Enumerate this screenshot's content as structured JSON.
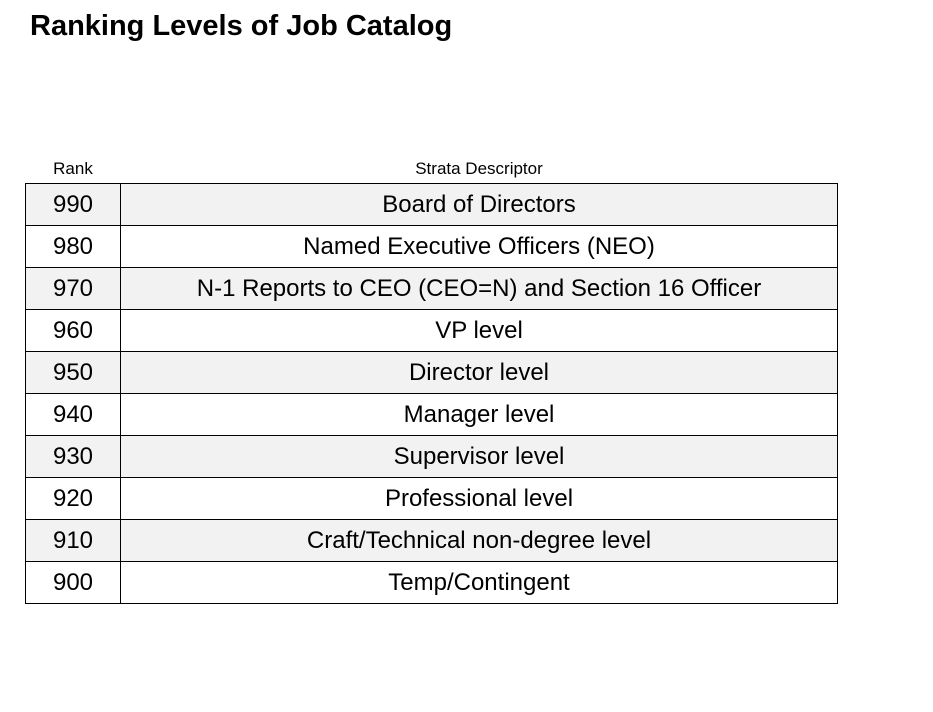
{
  "page": {
    "title": "Ranking Levels of Job Catalog"
  },
  "table": {
    "headers": {
      "rank": "Rank",
      "descriptor": "Strata Descriptor"
    },
    "rows": [
      {
        "rank": "990",
        "descriptor": "Board of Directors"
      },
      {
        "rank": "980",
        "descriptor": "Named Executive Officers (NEO)"
      },
      {
        "rank": "970",
        "descriptor": "N-1 Reports to CEO (CEO=N) and Section 16 Officer"
      },
      {
        "rank": "960",
        "descriptor": "VP level"
      },
      {
        "rank": "950",
        "descriptor": "Director level"
      },
      {
        "rank": "940",
        "descriptor": "Manager level"
      },
      {
        "rank": "930",
        "descriptor": "Supervisor level"
      },
      {
        "rank": "920",
        "descriptor": "Professional level"
      },
      {
        "rank": "910",
        "descriptor": "Craft/Technical non-degree level"
      },
      {
        "rank": "900",
        "descriptor": "Temp/Contingent"
      }
    ],
    "colors": {
      "stripe": "#f2f2f2",
      "border": "#000000",
      "text": "#000000",
      "background": "#ffffff"
    }
  }
}
